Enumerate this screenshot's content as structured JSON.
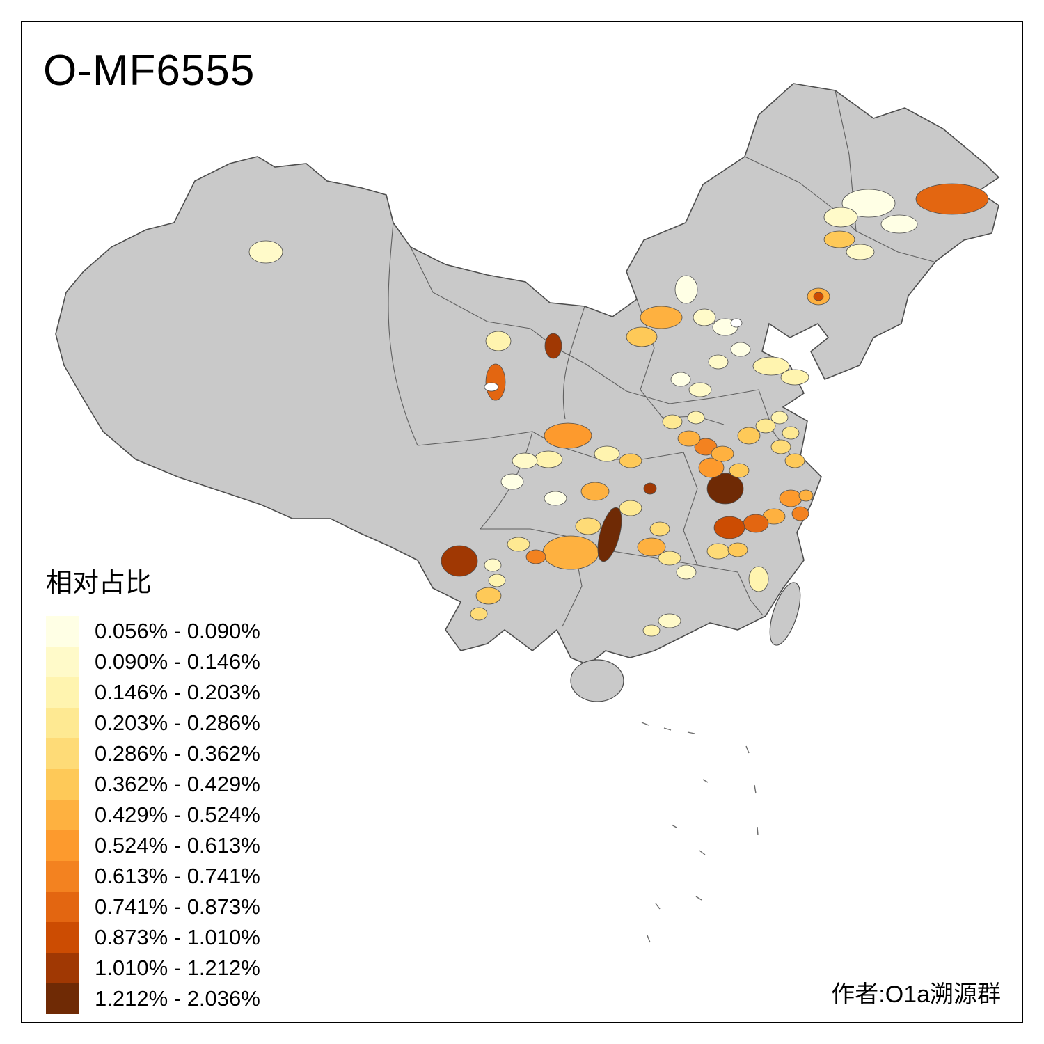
{
  "title": "O-MF6555",
  "legend": {
    "title": "相对占比",
    "items": [
      {
        "range": "0.056% - 0.090%",
        "color": "#FFFFE5"
      },
      {
        "range": "0.090% - 0.146%",
        "color": "#FFFAC9"
      },
      {
        "range": "0.146% - 0.203%",
        "color": "#FFF4AF"
      },
      {
        "range": "0.203% - 0.286%",
        "color": "#FEE992"
      },
      {
        "range": "0.286% - 0.362%",
        "color": "#FEDB77"
      },
      {
        "range": "0.362% - 0.429%",
        "color": "#FEC958"
      },
      {
        "range": "0.429% - 0.524%",
        "color": "#FEB140"
      },
      {
        "range": "0.524% - 0.613%",
        "color": "#FD9A2D"
      },
      {
        "range": "0.613% - 0.741%",
        "color": "#F38220"
      },
      {
        "range": "0.741% - 0.873%",
        "color": "#E36611"
      },
      {
        "range": "0.873% - 1.010%",
        "color": "#CC4C02"
      },
      {
        "range": "1.010% - 1.212%",
        "color": "#A03803"
      },
      {
        "range": "1.212% - 2.036%",
        "color": "#6F2A05"
      }
    ]
  },
  "author": "作者:O1a溯源群",
  "map": {
    "base_color": "#C9C9C9",
    "border_color": "#4D4D4D",
    "background": "#FFFFFF"
  }
}
